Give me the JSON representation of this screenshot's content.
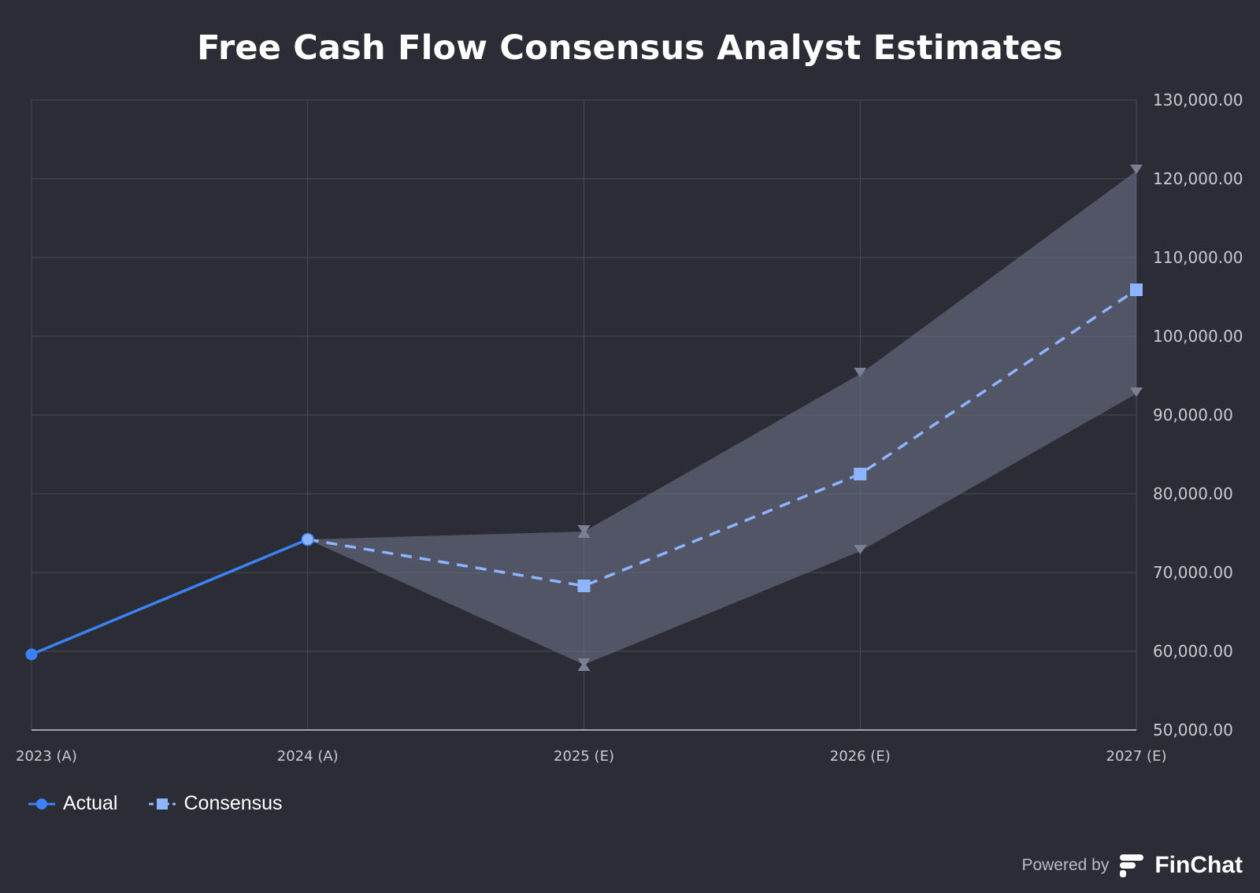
{
  "chart_data": {
    "type": "line",
    "title": "Free Cash Flow Consensus Analyst Estimates",
    "categories": [
      "2023 (A)",
      "2024 (A)",
      "2025 (E)",
      "2026 (E)",
      "2027 (E)"
    ],
    "ylim": [
      50000,
      130000
    ],
    "y_ticks": [
      "50,000.00",
      "60,000.00",
      "70,000.00",
      "80,000.00",
      "90,000.00",
      "100,000.00",
      "110,000.00",
      "120,000.00",
      "130,000.00"
    ],
    "y_tick_values": [
      50000,
      60000,
      70000,
      80000,
      90000,
      100000,
      110000,
      120000,
      130000
    ],
    "y_axis_position": "right",
    "grid": true,
    "legend_position": "bottom-left",
    "series": [
      {
        "name": "Actual",
        "color": "#3b82f6",
        "style": "solid",
        "marker": "circle",
        "values": [
          59600,
          74200,
          null,
          null,
          null
        ]
      },
      {
        "name": "Consensus",
        "color": "#8fb4ff",
        "style": "dashed",
        "marker": "square",
        "values": [
          null,
          74200,
          68300,
          82500,
          105900
        ]
      }
    ],
    "estimate_range": {
      "color": "#6b7185",
      "high": [
        null,
        74200,
        75200,
        95200,
        121000
      ],
      "low": [
        null,
        74200,
        58300,
        72700,
        92700
      ]
    }
  },
  "footer": {
    "powered_by": "Powered by",
    "brand": "FinChat"
  }
}
